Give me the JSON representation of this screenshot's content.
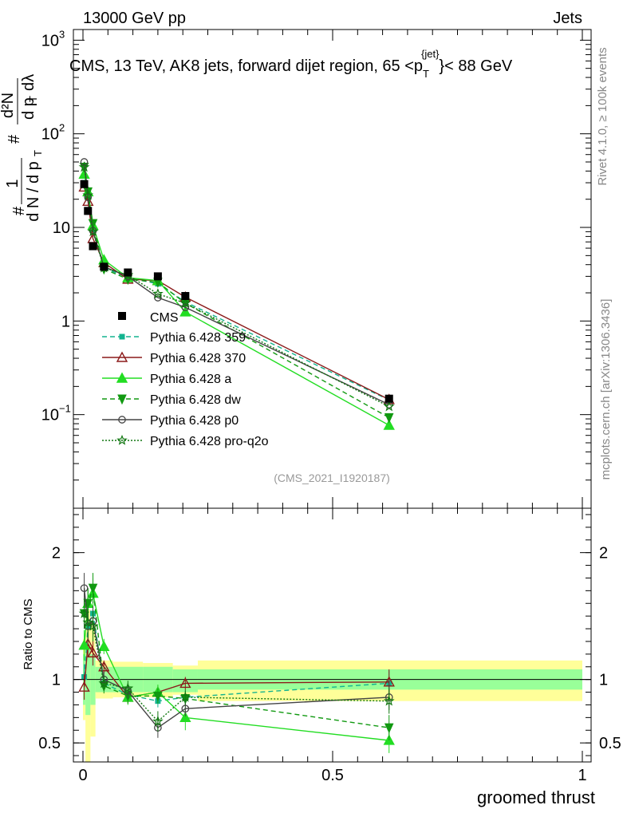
{
  "header": {
    "energy_label": "13000 GeV pp",
    "category_label": "Jets"
  },
  "side_labels": {
    "rivet": "Rivet 4.1.0, ≥ 100k events",
    "site": "mcplots.cern.ch [arXiv:1306.3436]"
  },
  "chart_data": {
    "type": "line",
    "title": "CMS, 13 TeV, AK8 jets, forward dijet region, 65 <p_T^{jet}> < 88 GeV",
    "title_parts": {
      "main": "CMS, 13 TeV, AK8 jets, forward dijet region, 65 <p",
      "sub": "T",
      "sup": "{jet}",
      "tail": "}< 88 GeV"
    },
    "analysis_id": "(CMS_2021_I1920187)",
    "xlabel": "groomed thrust",
    "ylabel_parts": {
      "frac_num": "1",
      "frac_den": "d N / d p",
      "sub_t": "T",
      "hash": "#",
      "inner_num": "d²N",
      "inner_den_a": "d p",
      "inner_den_b": "dλ"
    },
    "ratio_ylabel": "Ratio to CMS",
    "xlim": [
      0,
      1
    ],
    "ylim_main": [
      0.01,
      1300
    ],
    "ylim_ratio": [
      0.35,
      2.35
    ],
    "x_ticks": [
      0,
      0.5,
      1
    ],
    "x_tick_labels": [
      "0",
      "0.5",
      "1"
    ],
    "main_y_ticks": [
      {
        "value": 1000,
        "base": "10",
        "exp": "3"
      },
      {
        "value": 100,
        "base": "10",
        "exp": "2"
      },
      {
        "value": 10,
        "base": "10",
        "exp": ""
      },
      {
        "value": 1,
        "base": "1",
        "exp": ""
      },
      {
        "value": 0.1,
        "base": "10",
        "exp": "−1"
      }
    ],
    "ratio_y_ticks": [
      {
        "value": 2,
        "label": "2"
      },
      {
        "value": 1,
        "label": "1"
      },
      {
        "value": 0.5,
        "label": "0.5"
      }
    ],
    "x": [
      0.0025,
      0.01,
      0.02,
      0.042,
      0.09,
      0.15,
      0.205,
      0.613
    ],
    "band_edges": [
      0,
      0.005,
      0.015,
      0.025,
      0.06,
      0.12,
      0.18,
      0.23,
      1.0
    ],
    "band_yellow": [
      [
        0.68,
        1.32
      ],
      [
        0.35,
        1.55
      ],
      [
        0.55,
        1.45
      ],
      [
        0.85,
        1.15
      ],
      [
        0.86,
        1.14
      ],
      [
        0.86,
        1.13
      ],
      [
        0.88,
        1.11
      ],
      [
        0.83,
        1.15
      ]
    ],
    "band_green": [
      [
        0.8,
        1.2
      ],
      [
        0.72,
        1.28
      ],
      [
        0.8,
        1.2
      ],
      [
        0.9,
        1.1
      ],
      [
        0.9,
        1.1
      ],
      [
        0.9,
        1.1
      ],
      [
        0.9,
        1.08
      ],
      [
        0.92,
        1.08
      ]
    ],
    "cms": {
      "name": "CMS",
      "values": [
        29,
        15,
        6.3,
        3.8,
        3.3,
        3.0,
        1.85,
        0.148
      ]
    },
    "series": [
      {
        "name": "Pythia 6.428 359",
        "color": "#13b38f",
        "dash": "6,4",
        "marker": "square",
        "values": [
          30,
          21,
          9.6,
          3.7,
          2.9,
          2.5,
          1.6,
          0.143
        ],
        "ratio": [
          1.02,
          1.42,
          1.52,
          0.97,
          0.88,
          0.83,
          0.86,
          0.97
        ],
        "err": [
          0.1,
          0.1,
          0.1,
          0.05,
          0.05,
          0.05,
          0.05,
          0.1
        ]
      },
      {
        "name": "Pythia 6.428 370",
        "color": "#8b1a1a",
        "dash": "",
        "marker": "triangle-open",
        "values": [
          27,
          19,
          7.6,
          4.2,
          2.8,
          2.7,
          1.8,
          0.145
        ],
        "ratio": [
          0.94,
          1.28,
          1.21,
          1.1,
          0.86,
          0.9,
          0.97,
          0.98
        ],
        "err": [
          0.1,
          0.1,
          0.1,
          0.05,
          0.05,
          0.05,
          0.05,
          0.1
        ]
      },
      {
        "name": "Pythia 6.428 a",
        "color": "#22dd22",
        "dash": "",
        "marker": "triangle",
        "values": [
          37,
          24,
          10.5,
          4.5,
          2.9,
          2.7,
          1.25,
          0.077
        ],
        "ratio": [
          1.27,
          1.6,
          1.68,
          1.26,
          0.86,
          0.9,
          0.7,
          0.52
        ],
        "err": [
          0.12,
          0.12,
          0.12,
          0.06,
          0.06,
          0.06,
          0.1,
          0.1
        ]
      },
      {
        "name": "Pythia 6.428 dw",
        "color": "#119911",
        "dash": "6,4",
        "marker": "triangle-down",
        "values": [
          44,
          24,
          11,
          3.6,
          2.8,
          2.6,
          1.55,
          0.093
        ],
        "ratio": [
          1.52,
          1.6,
          1.72,
          0.95,
          0.87,
          0.87,
          0.85,
          0.62
        ],
        "err": [
          0.12,
          0.12,
          0.12,
          0.06,
          0.06,
          0.06,
          0.06,
          0.1
        ]
      },
      {
        "name": "Pythia 6.428 p0",
        "color": "#444444",
        "dash": "",
        "marker": "circle-open",
        "values": [
          50,
          21,
          9.2,
          3.8,
          3.0,
          1.78,
          1.4,
          0.128
        ],
        "ratio": [
          1.72,
          1.42,
          1.46,
          1.0,
          0.91,
          0.62,
          0.77,
          0.86
        ],
        "err": [
          0.12,
          0.12,
          0.12,
          0.06,
          0.06,
          0.08,
          0.06,
          0.1
        ]
      },
      {
        "name": "Pythia 6.428 pro-q2o",
        "color": "#117711",
        "dash": "2,2",
        "marker": "star",
        "values": [
          44,
          22,
          9.0,
          3.7,
          3.1,
          1.95,
          1.55,
          0.122
        ],
        "ratio": [
          1.52,
          1.45,
          1.42,
          0.97,
          0.93,
          0.67,
          0.86,
          0.83
        ],
        "err": [
          0.12,
          0.12,
          0.12,
          0.06,
          0.06,
          0.08,
          0.06,
          0.1
        ]
      }
    ]
  }
}
